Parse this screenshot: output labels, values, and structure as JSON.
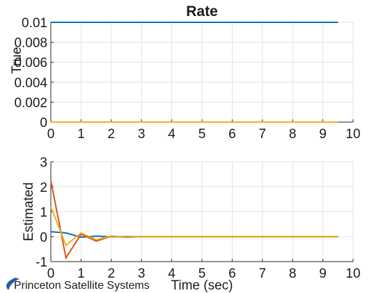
{
  "footer": {
    "text": "Princeton Satellite Systems"
  },
  "colors": {
    "series1": "#0072BD",
    "series2": "#D95319",
    "series3": "#EDB120",
    "grid": "#dcdcdc",
    "axis": "#262626",
    "logo": "#1f5fa8"
  },
  "chart_data": [
    {
      "type": "line",
      "title": "Rate",
      "xlabel": "",
      "ylabel": "True",
      "xlim": [
        0,
        10
      ],
      "ylim": [
        0,
        0.01
      ],
      "xticks": [
        "0",
        "1",
        "2",
        "3",
        "4",
        "5",
        "6",
        "7",
        "8",
        "9",
        "10"
      ],
      "yticks": [
        "0",
        "0.002",
        "0.004",
        "0.006",
        "0.008",
        "0.01"
      ],
      "grid": true,
      "x": [
        0,
        0.5,
        1,
        1.5,
        2,
        2.5,
        3,
        3.5,
        4,
        4.5,
        5,
        5.5,
        6,
        6.5,
        7,
        7.5,
        8,
        8.5,
        9,
        9.5
      ],
      "series": [
        {
          "values": [
            0.01,
            0.01,
            0.01,
            0.01,
            0.01,
            0.01,
            0.01,
            0.01,
            0.01,
            0.01,
            0.01,
            0.01,
            0.01,
            0.01,
            0.01,
            0.01,
            0.01,
            0.01,
            0.01,
            0.01
          ]
        },
        {
          "values": [
            0,
            0,
            0,
            0,
            0,
            0,
            0,
            0,
            0,
            0,
            0,
            0,
            0,
            0,
            0,
            0,
            0,
            0,
            0,
            0
          ]
        },
        {
          "values": [
            0,
            0,
            0,
            0,
            0,
            0,
            0,
            0,
            0,
            0,
            0,
            0,
            0,
            0,
            0,
            0,
            0,
            0,
            0,
            0
          ]
        }
      ]
    },
    {
      "type": "line",
      "title": "",
      "xlabel": "Time (sec)",
      "ylabel": "Estimated",
      "xlim": [
        0,
        10
      ],
      "ylim": [
        -1,
        3
      ],
      "xticks": [
        "0",
        "1",
        "2",
        "3",
        "4",
        "5",
        "6",
        "7",
        "8",
        "9",
        "10"
      ],
      "yticks": [
        "-1",
        "0",
        "1",
        "2",
        "3"
      ],
      "grid": true,
      "x": [
        0,
        0.5,
        1,
        1.5,
        2,
        2.5,
        3,
        3.5,
        4,
        4.5,
        5,
        5.5,
        6,
        6.5,
        7,
        7.5,
        8,
        8.5,
        9,
        9.5
      ],
      "series": [
        {
          "values": [
            0.2,
            0.15,
            -0.02,
            0.02,
            0.0,
            0,
            0,
            0,
            0,
            0,
            0,
            0,
            0,
            0,
            0,
            0,
            0,
            0,
            0,
            0
          ]
        },
        {
          "values": [
            2.25,
            -0.85,
            0.1,
            -0.18,
            0.02,
            -0.03,
            0.0,
            0,
            0,
            0,
            0,
            0,
            0,
            0,
            0,
            0,
            0,
            0,
            0,
            0
          ]
        },
        {
          "values": [
            1.2,
            -0.35,
            0.15,
            -0.12,
            0.03,
            -0.02,
            0.0,
            0,
            0,
            0,
            0,
            0,
            0,
            0,
            0,
            0,
            0,
            0,
            0,
            0
          ]
        }
      ]
    }
  ]
}
